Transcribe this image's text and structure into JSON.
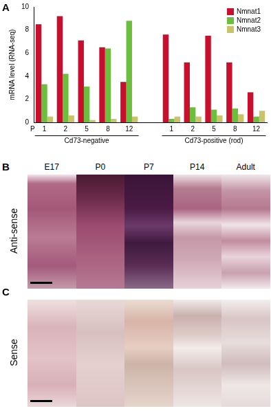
{
  "chart_data": {
    "type": "bar",
    "y_label": "mRNA level (RNA-seq)",
    "x_prefix": "P",
    "categories": [
      "1",
      "2",
      "5",
      "8",
      "12",
      null,
      "1",
      "2",
      "5",
      "8",
      "12"
    ],
    "group_labels": [
      "Cd73-negative",
      "Cd73-positive (rod)"
    ],
    "series": [
      {
        "name": "Nmnat1",
        "color": "#c8102e",
        "values": [
          8.5,
          9.2,
          7.1,
          6.5,
          3.5,
          null,
          7.6,
          5.2,
          7.5,
          5.2,
          2.6
        ]
      },
      {
        "name": "Nmnat2",
        "color": "#6cbf3c",
        "values": [
          3.3,
          4.2,
          3.1,
          6.4,
          8.8,
          null,
          0.3,
          1.3,
          1.1,
          1.2,
          0.5
        ]
      },
      {
        "name": "Nmnat3",
        "color": "#c9c46a",
        "values": [
          0.5,
          0.6,
          0.2,
          0.3,
          0.5,
          null,
          0.5,
          0.5,
          0.6,
          0.7,
          1.0
        ]
      }
    ],
    "ylim": [
      0,
      10
    ],
    "yticks": [
      0,
      2,
      4,
      6,
      8,
      10
    ],
    "grid": false,
    "legend": "upper right"
  },
  "figure": {
    "chart_panel": "A",
    "columns": [
      "E17",
      "P0",
      "P7",
      "P14",
      "Adult"
    ],
    "image_rows": [
      {
        "panel": "B",
        "label": "Anti-sense"
      },
      {
        "panel": "C",
        "label": "Sense"
      }
    ]
  }
}
